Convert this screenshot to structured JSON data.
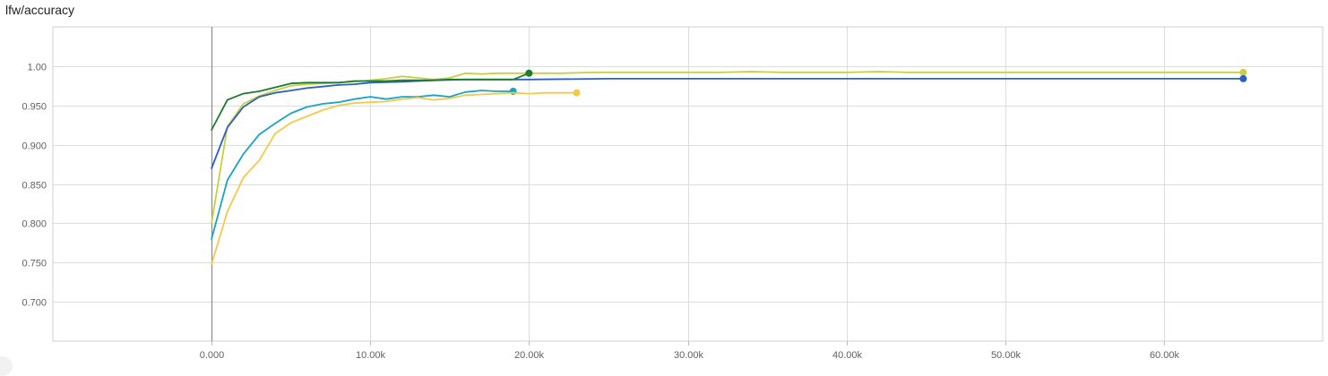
{
  "chart_data": {
    "type": "line",
    "title": "lfw/accuracy",
    "xlabel": "",
    "ylabel": "",
    "xlim": [
      -10000,
      70000
    ],
    "ylim": [
      0.65,
      1.05
    ],
    "x_ticks": [
      0,
      10000,
      20000,
      30000,
      40000,
      50000,
      60000
    ],
    "x_tick_labels": [
      "0.000",
      "10.00k",
      "20.00k",
      "30.00k",
      "40.00k",
      "50.00k",
      "60.00k"
    ],
    "y_ticks": [
      0.7,
      0.75,
      0.8,
      0.85,
      0.9,
      0.95,
      1.0
    ],
    "y_tick_labels": [
      "0.700",
      "0.750",
      "0.800",
      "0.850",
      "0.900",
      "0.950",
      "1.00"
    ],
    "grid": true,
    "series": [
      {
        "color": "#c6d042",
        "x": [
          0,
          1000,
          2000,
          3000,
          4000,
          5000,
          6000,
          7000,
          8000,
          9000,
          10000,
          11000,
          12000,
          13000,
          14000,
          15000,
          16000,
          17000,
          18000,
          19000,
          20000,
          22000,
          24000,
          26000,
          28000,
          30000,
          32000,
          34000,
          36000,
          38000,
          40000,
          42000,
          44000,
          46000,
          48000,
          50000,
          52000,
          54000,
          56000,
          58000,
          60000,
          62000,
          65000
        ],
        "y": [
          0.8,
          0.923,
          0.952,
          0.962,
          0.969,
          0.975,
          0.977,
          0.978,
          0.979,
          0.98,
          0.982,
          0.984,
          0.987,
          0.985,
          0.983,
          0.985,
          0.991,
          0.99,
          0.991,
          0.991,
          0.991,
          0.991,
          0.992,
          0.992,
          0.992,
          0.992,
          0.992,
          0.993,
          0.992,
          0.992,
          0.992,
          0.993,
          0.992,
          0.992,
          0.992,
          0.992,
          0.992,
          0.992,
          0.992,
          0.992,
          0.992,
          0.992,
          0.992
        ]
      },
      {
        "color": "#2d5fc2",
        "x": [
          0,
          1000,
          2000,
          3000,
          4000,
          5000,
          6000,
          7000,
          8000,
          9000,
          10000,
          12000,
          14000,
          16000,
          18000,
          20000,
          25000,
          30000,
          35000,
          40000,
          45000,
          50000,
          55000,
          60000,
          65000
        ],
        "y": [
          0.87,
          0.922,
          0.948,
          0.961,
          0.966,
          0.969,
          0.972,
          0.974,
          0.976,
          0.977,
          0.979,
          0.98,
          0.982,
          0.983,
          0.983,
          0.983,
          0.984,
          0.984,
          0.984,
          0.984,
          0.984,
          0.984,
          0.984,
          0.984,
          0.984
        ]
      },
      {
        "color": "#1e7a2e",
        "x": [
          0,
          1000,
          2000,
          3000,
          4000,
          5000,
          6000,
          7000,
          8000,
          9000,
          10000,
          11000,
          12000,
          13000,
          14000,
          15000,
          16000,
          17000,
          18000,
          19000,
          20000
        ],
        "y": [
          0.919,
          0.957,
          0.965,
          0.968,
          0.973,
          0.978,
          0.979,
          0.979,
          0.979,
          0.981,
          0.981,
          0.981,
          0.982,
          0.982,
          0.982,
          0.983,
          0.983,
          0.983,
          0.983,
          0.983,
          0.991
        ]
      },
      {
        "color": "#1aa3c2",
        "x": [
          0,
          1000,
          2000,
          3000,
          4000,
          5000,
          6000,
          7000,
          8000,
          9000,
          10000,
          11000,
          12000,
          13000,
          14000,
          15000,
          16000,
          17000,
          18000,
          19000
        ],
        "y": [
          0.78,
          0.855,
          0.888,
          0.913,
          0.927,
          0.94,
          0.948,
          0.952,
          0.954,
          0.958,
          0.961,
          0.958,
          0.961,
          0.961,
          0.963,
          0.961,
          0.967,
          0.969,
          0.968,
          0.968
        ]
      },
      {
        "color": "#f4c84a",
        "x": [
          0,
          1000,
          2000,
          3000,
          4000,
          5000,
          6000,
          7000,
          8000,
          9000,
          10000,
          11000,
          12000,
          13000,
          14000,
          15000,
          16000,
          17000,
          18000,
          19000,
          20000,
          21000,
          22000,
          23000
        ],
        "y": [
          0.748,
          0.815,
          0.858,
          0.88,
          0.914,
          0.928,
          0.936,
          0.944,
          0.95,
          0.953,
          0.954,
          0.955,
          0.958,
          0.96,
          0.957,
          0.959,
          0.963,
          0.964,
          0.965,
          0.966,
          0.965,
          0.966,
          0.966,
          0.966
        ]
      }
    ]
  }
}
